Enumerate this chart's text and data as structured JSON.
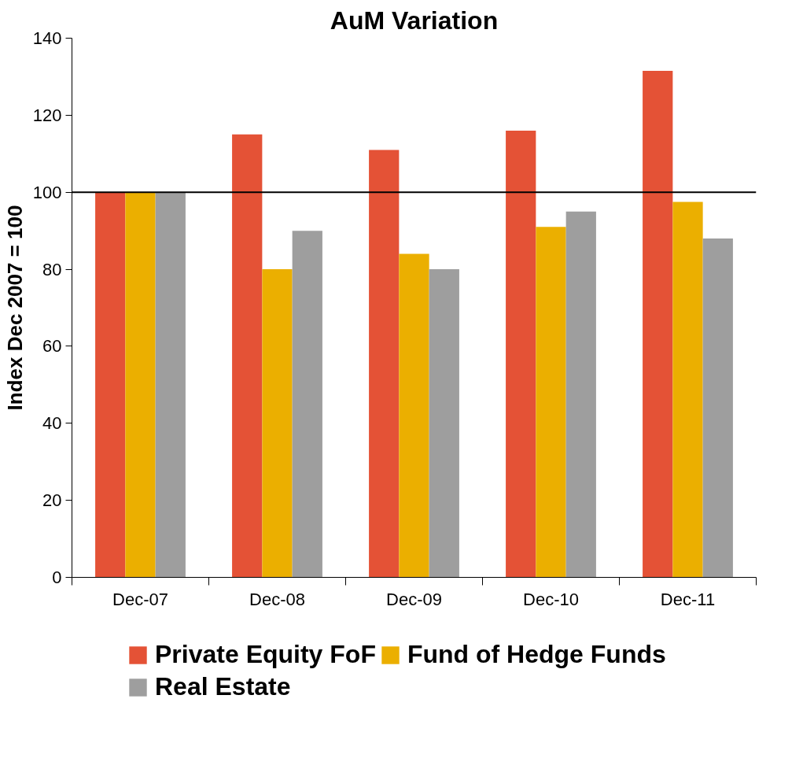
{
  "chart_data": {
    "type": "bar",
    "title": "AuM Variation",
    "ylabel": "Index Dec 2007 = 100",
    "categories": [
      "Dec-07",
      "Dec-08",
      "Dec-09",
      "Dec-10",
      "Dec-11"
    ],
    "series": [
      {
        "name": "Private Equity FoF",
        "color": "#e45236",
        "values": [
          100,
          115,
          111,
          116,
          131.5
        ]
      },
      {
        "name": "Fund of Hedge Funds",
        "color": "#ebaf00",
        "values": [
          100,
          80,
          84,
          91,
          97.5
        ]
      },
      {
        "name": "Real Estate",
        "color": "#9e9e9e",
        "values": [
          100,
          90,
          80,
          95,
          88
        ]
      }
    ],
    "ylim": [
      0,
      140
    ],
    "yticks": [
      0,
      20,
      40,
      60,
      80,
      100,
      120,
      140
    ],
    "ref_lines": [
      {
        "axis": "y",
        "value": 100,
        "color": "#000000"
      }
    ],
    "grid": false,
    "legend": "bottom"
  }
}
